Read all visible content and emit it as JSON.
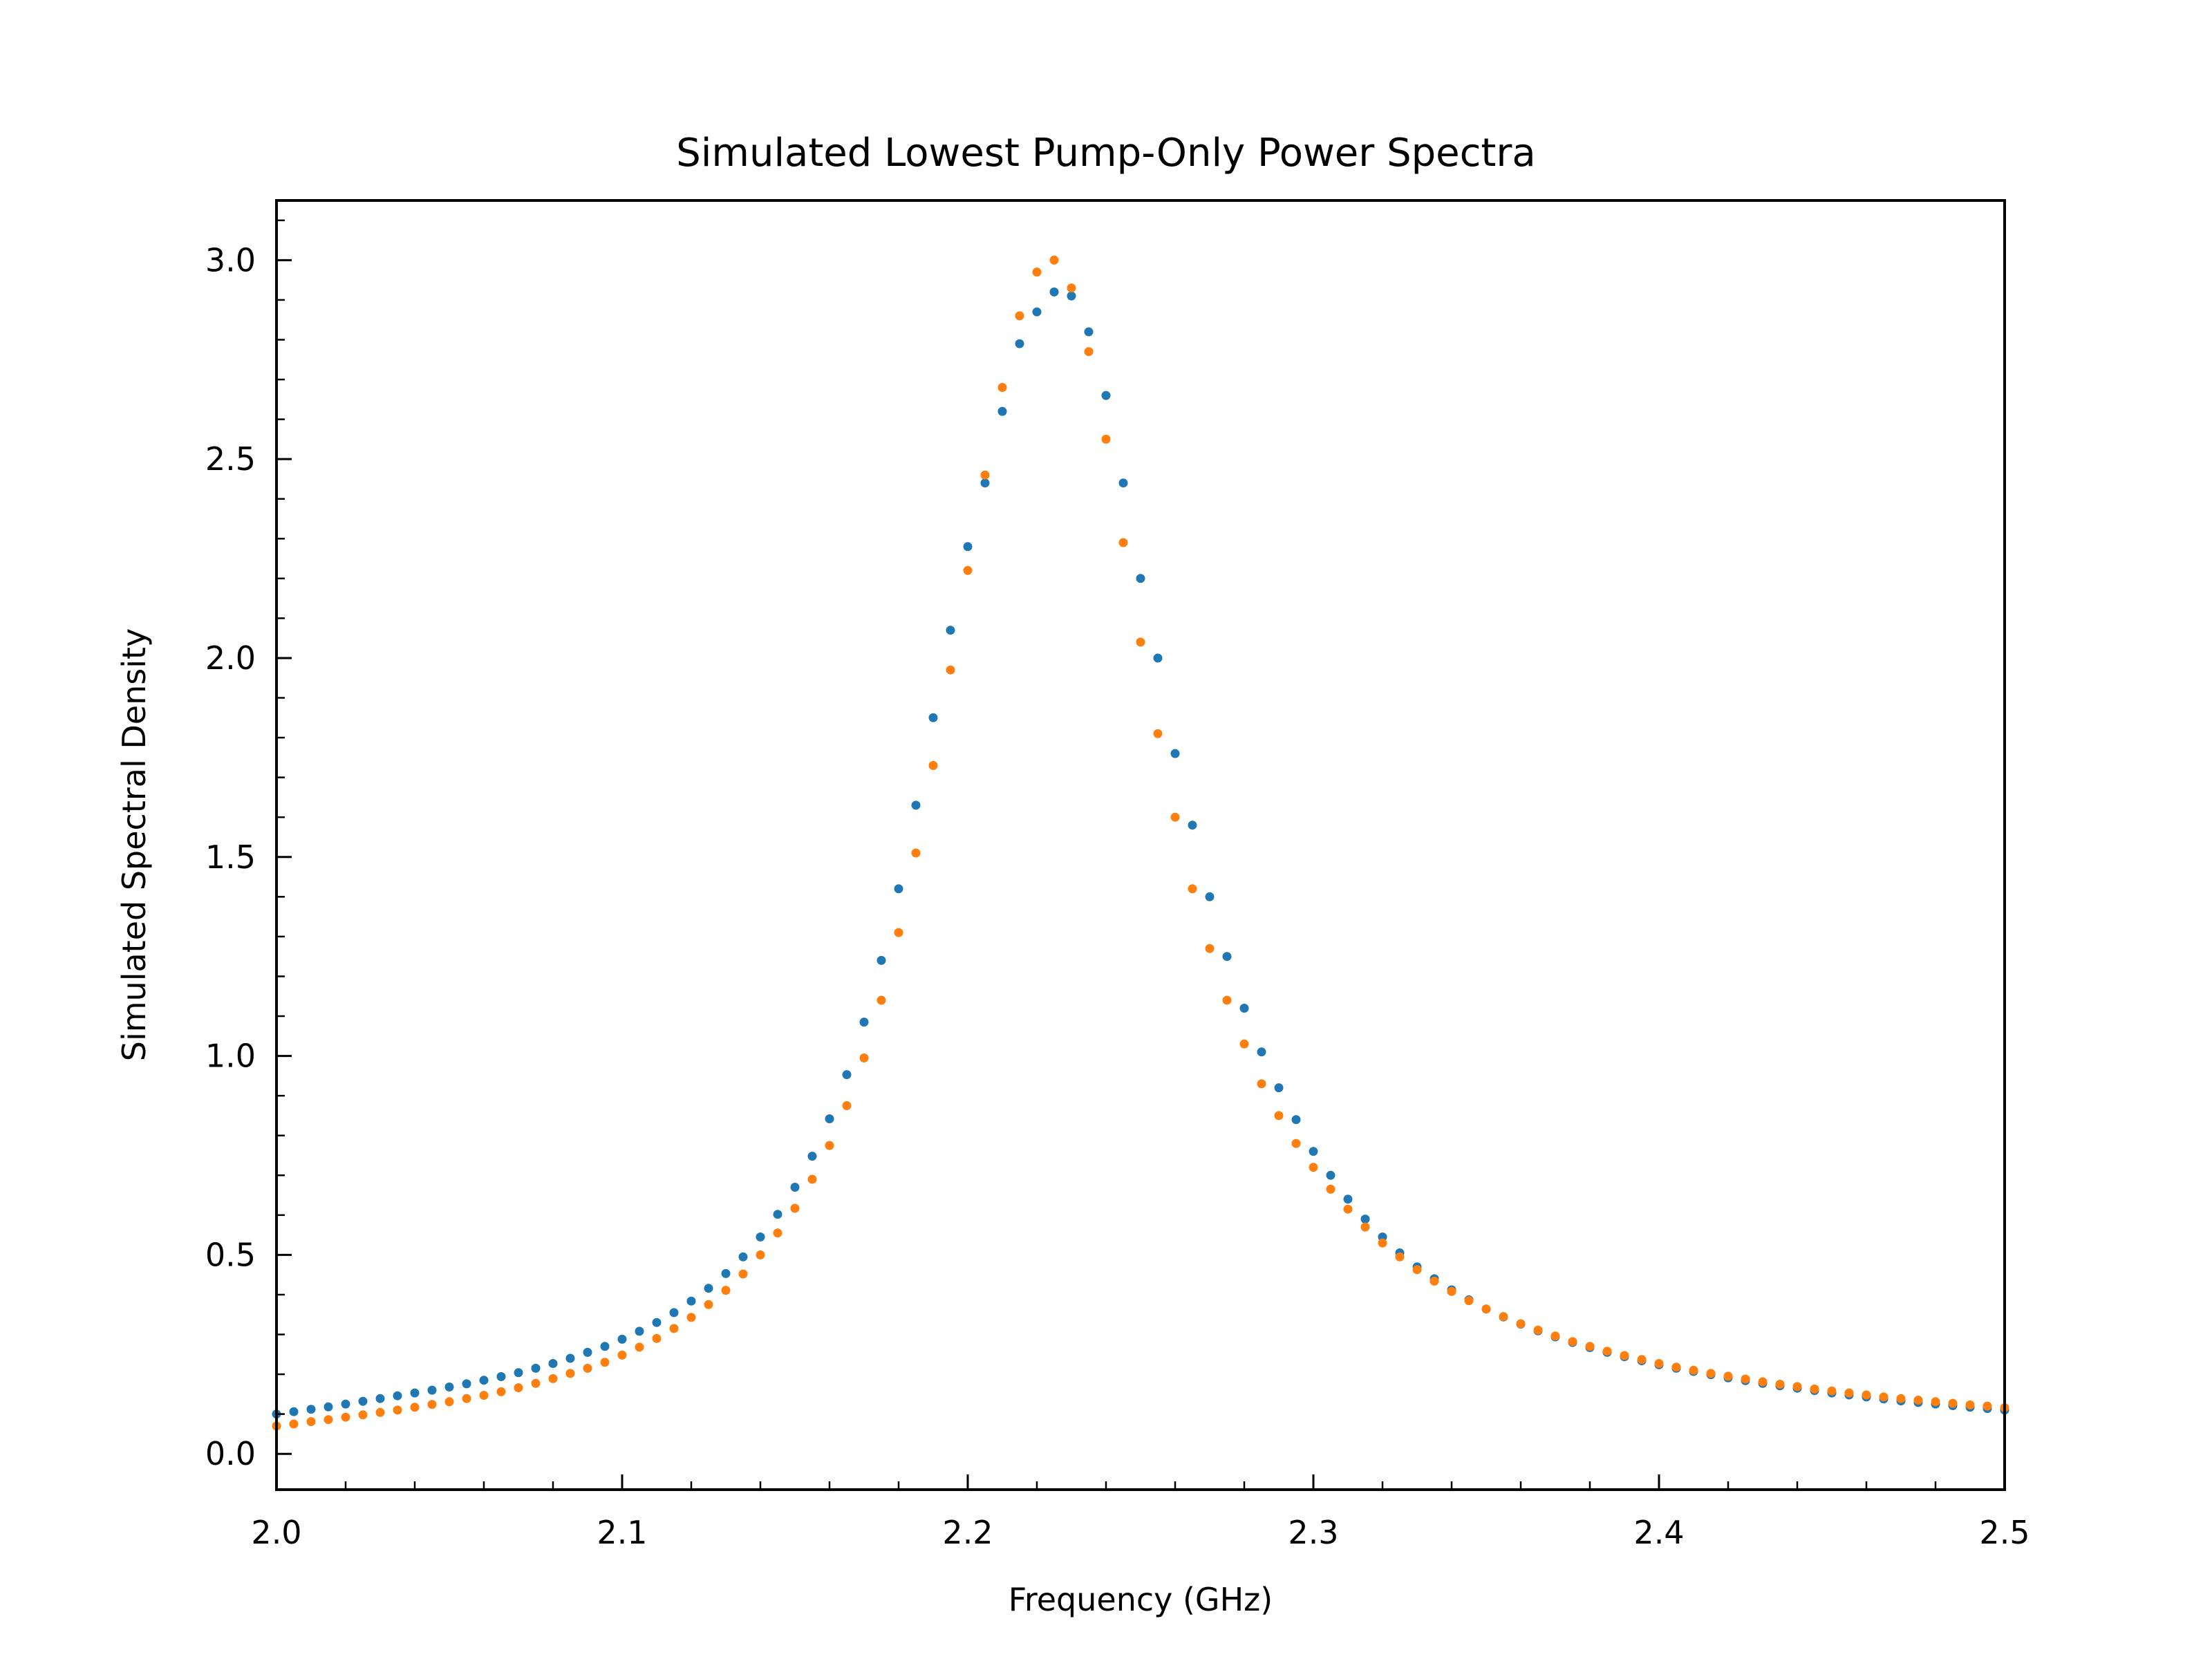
{
  "chart_data": {
    "type": "scatter",
    "title": "Simulated Lowest Pump-Only Power Spectra",
    "xlabel": "Frequency (GHz)",
    "ylabel": "Simulated Spectral Density",
    "xlim": [
      2.0,
      2.5
    ],
    "ylim": [
      -0.09,
      3.15
    ],
    "x_ticks": [
      2.0,
      2.1,
      2.2,
      2.3,
      2.4,
      2.5
    ],
    "x_tick_labels": [
      "2.0",
      "2.1",
      "2.2",
      "2.3",
      "2.4",
      "2.5"
    ],
    "y_ticks": [
      0.0,
      0.5,
      1.0,
      1.5,
      2.0,
      2.5,
      3.0
    ],
    "y_tick_labels": [
      "0.0",
      "0.5",
      "1.0",
      "1.5",
      "2.0",
      "2.5",
      "3.0"
    ],
    "grid": false,
    "legend": null,
    "colors": {
      "series_1": "#1f77b4",
      "series_2": "#ff7f0e"
    },
    "series": [
      {
        "color": "#1f77b4",
        "x": [
          2.0,
          2.005,
          2.01,
          2.015,
          2.02,
          2.025,
          2.03,
          2.035,
          2.04,
          2.045,
          2.05,
          2.055,
          2.06,
          2.065,
          2.07,
          2.075,
          2.08,
          2.085,
          2.09,
          2.095,
          2.1,
          2.105,
          2.11,
          2.115,
          2.12,
          2.125,
          2.13,
          2.135,
          2.14,
          2.145,
          2.15,
          2.155,
          2.16,
          2.165,
          2.17,
          2.175,
          2.18,
          2.185,
          2.19,
          2.195,
          2.2,
          2.205,
          2.21,
          2.215,
          2.22,
          2.225,
          2.23,
          2.235,
          2.24,
          2.245,
          2.25,
          2.255,
          2.26,
          2.265,
          2.27,
          2.275,
          2.28,
          2.285,
          2.29,
          2.295,
          2.3,
          2.305,
          2.31,
          2.315,
          2.32,
          2.325,
          2.33,
          2.335,
          2.34,
          2.345,
          2.35,
          2.355,
          2.36,
          2.365,
          2.37,
          2.375,
          2.38,
          2.385,
          2.39,
          2.395,
          2.4,
          2.405,
          2.41,
          2.415,
          2.42,
          2.425,
          2.43,
          2.435,
          2.44,
          2.445,
          2.45,
          2.455,
          2.46,
          2.465,
          2.47,
          2.475,
          2.48,
          2.485,
          2.49,
          2.495,
          2.5
        ],
        "y": [
          0.1,
          0.106,
          0.112,
          0.118,
          0.125,
          0.132,
          0.139,
          0.146,
          0.153,
          0.16,
          0.168,
          0.176,
          0.185,
          0.194,
          0.204,
          0.215,
          0.227,
          0.24,
          0.255,
          0.27,
          0.288,
          0.308,
          0.33,
          0.355,
          0.384,
          0.416,
          0.453,
          0.495,
          0.545,
          0.602,
          0.67,
          0.748,
          0.842,
          0.953,
          1.085,
          1.24,
          1.42,
          1.63,
          1.85,
          2.07,
          2.28,
          2.44,
          2.62,
          2.79,
          2.87,
          2.92,
          2.91,
          2.82,
          2.66,
          2.44,
          2.2,
          2.0,
          1.76,
          1.58,
          1.4,
          1.25,
          1.12,
          1.01,
          0.92,
          0.84,
          0.76,
          0.7,
          0.64,
          0.59,
          0.545,
          0.505,
          0.47,
          0.44,
          0.412,
          0.387,
          0.364,
          0.344,
          0.326,
          0.309,
          0.294,
          0.28,
          0.267,
          0.255,
          0.244,
          0.234,
          0.224,
          0.215,
          0.207,
          0.199,
          0.191,
          0.184,
          0.177,
          0.171,
          0.165,
          0.159,
          0.153,
          0.148,
          0.143,
          0.138,
          0.133,
          0.129,
          0.125,
          0.121,
          0.117,
          0.114,
          0.11
        ]
      },
      {
        "color": "#ff7f0e",
        "x": [
          2.0,
          2.005,
          2.01,
          2.015,
          2.02,
          2.025,
          2.03,
          2.035,
          2.04,
          2.045,
          2.05,
          2.055,
          2.06,
          2.065,
          2.07,
          2.075,
          2.08,
          2.085,
          2.09,
          2.095,
          2.1,
          2.105,
          2.11,
          2.115,
          2.12,
          2.125,
          2.13,
          2.135,
          2.14,
          2.145,
          2.15,
          2.155,
          2.16,
          2.165,
          2.17,
          2.175,
          2.18,
          2.185,
          2.19,
          2.195,
          2.2,
          2.205,
          2.21,
          2.215,
          2.22,
          2.225,
          2.23,
          2.235,
          2.24,
          2.245,
          2.25,
          2.255,
          2.26,
          2.265,
          2.27,
          2.275,
          2.28,
          2.285,
          2.29,
          2.295,
          2.3,
          2.305,
          2.31,
          2.315,
          2.32,
          2.325,
          2.33,
          2.335,
          2.34,
          2.345,
          2.35,
          2.355,
          2.36,
          2.365,
          2.37,
          2.375,
          2.38,
          2.385,
          2.39,
          2.395,
          2.4,
          2.405,
          2.41,
          2.415,
          2.42,
          2.425,
          2.43,
          2.435,
          2.44,
          2.445,
          2.45,
          2.455,
          2.46,
          2.465,
          2.47,
          2.475,
          2.48,
          2.485,
          2.49,
          2.495,
          2.5
        ],
        "y": [
          0.07,
          0.075,
          0.081,
          0.086,
          0.092,
          0.098,
          0.104,
          0.11,
          0.117,
          0.124,
          0.131,
          0.139,
          0.147,
          0.156,
          0.166,
          0.177,
          0.189,
          0.202,
          0.215,
          0.23,
          0.248,
          0.268,
          0.29,
          0.315,
          0.343,
          0.375,
          0.411,
          0.452,
          0.5,
          0.555,
          0.617,
          0.69,
          0.775,
          0.875,
          0.995,
          1.14,
          1.31,
          1.51,
          1.73,
          1.97,
          2.22,
          2.46,
          2.68,
          2.86,
          2.97,
          3.0,
          2.93,
          2.77,
          2.55,
          2.29,
          2.04,
          1.81,
          1.6,
          1.42,
          1.27,
          1.14,
          1.03,
          0.93,
          0.85,
          0.78,
          0.72,
          0.665,
          0.615,
          0.57,
          0.53,
          0.495,
          0.463,
          0.434,
          0.408,
          0.385,
          0.364,
          0.345,
          0.327,
          0.311,
          0.296,
          0.282,
          0.27,
          0.258,
          0.247,
          0.237,
          0.227,
          0.218,
          0.21,
          0.202,
          0.195,
          0.188,
          0.181,
          0.175,
          0.169,
          0.163,
          0.158,
          0.153,
          0.148,
          0.143,
          0.139,
          0.135,
          0.131,
          0.127,
          0.123,
          0.12,
          0.116
        ]
      }
    ]
  }
}
